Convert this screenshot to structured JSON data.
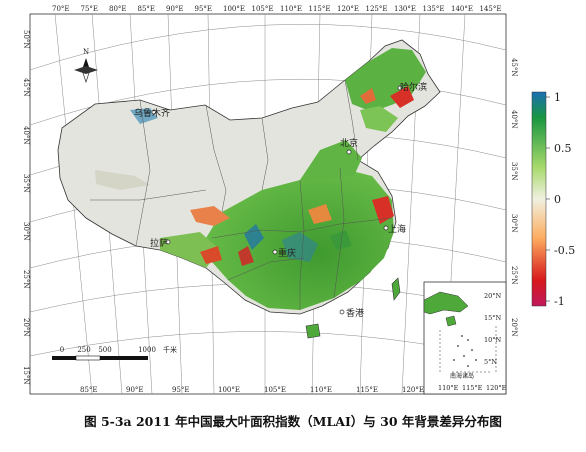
{
  "figure": {
    "caption": "图 5-3a 2011 年中国最大叶面积指数（MLAI）与 30 年背景差异分布图"
  },
  "map": {
    "lon_ticks_top": [
      "70°E",
      "75°E",
      "80°E",
      "85°E",
      "90°E",
      "95°E",
      "100°E",
      "105°E",
      "110°E",
      "115°E",
      "120°E",
      "125°E",
      "130°E",
      "135°E",
      "140°E",
      "145°E"
    ],
    "lon_ticks_bottom": [
      "85°E",
      "90°E",
      "95°E",
      "100°E",
      "105°E",
      "110°E",
      "115°E",
      "120°E"
    ],
    "lat_ticks_left": [
      "50°N",
      "45°N",
      "40°N",
      "35°N",
      "30°N",
      "25°N",
      "20°N",
      "15°N"
    ],
    "lat_ticks_right": [
      "45°N",
      "40°N",
      "35°N",
      "30°N",
      "25°N",
      "20°N"
    ],
    "north_label": "N",
    "scalebar": {
      "ticks": [
        "0",
        "250",
        "500",
        "1000"
      ],
      "unit": "千米"
    },
    "cities": [
      "乌鲁木齐",
      "哈尔滨",
      "北京",
      "上海",
      "拉萨",
      "重庆",
      "香港"
    ],
    "inset": {
      "lat_ticks": [
        "20°N",
        "15°N",
        "10°N",
        "5°N"
      ],
      "lon_ticks": [
        "110°E",
        "115°E",
        "120°E"
      ],
      "label": "南海诸岛"
    }
  },
  "legend": {
    "ticks": [
      "1",
      "0.5",
      "0",
      "-0.5",
      "-1"
    ],
    "colors": [
      "#1b6fb3",
      "#1a9641",
      "#a6d96a",
      "#f0f0e0",
      "#fdae61",
      "#d7191c",
      "#c0195c"
    ]
  },
  "colors": {
    "background_land": "#e6e6e0",
    "vegetation_green": "#4fa83a",
    "deficit_red": "#d73027"
  }
}
